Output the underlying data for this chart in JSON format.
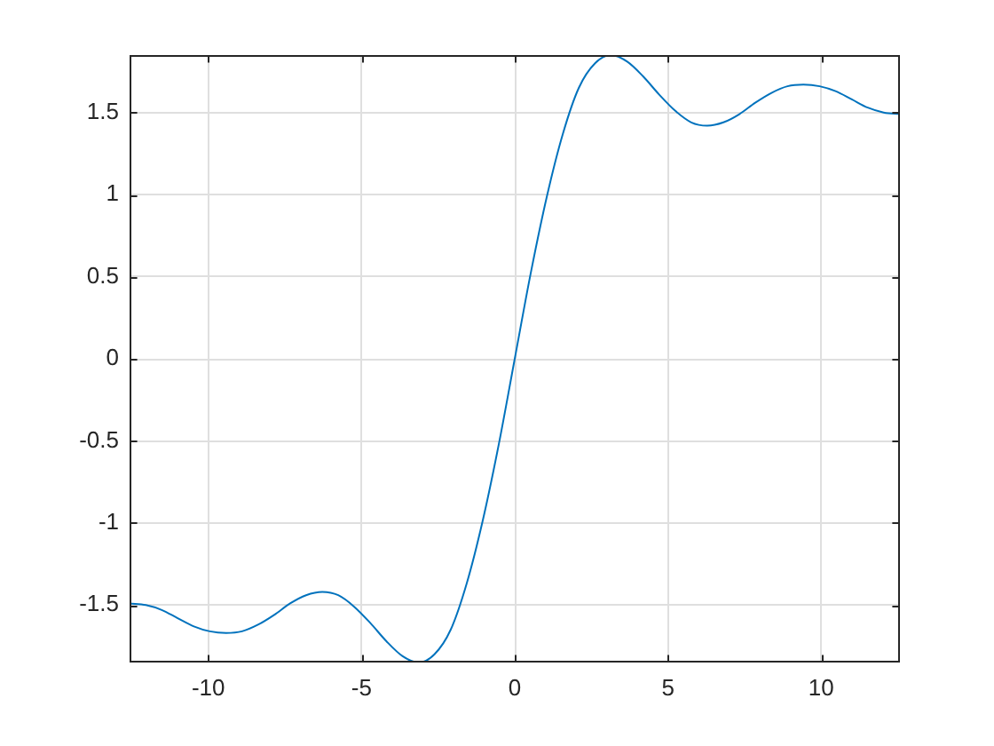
{
  "chart_data": {
    "type": "line",
    "x": [
      -12.57,
      -12.04,
      -11.52,
      -11,
      -10.47,
      -9.95,
      -9.42,
      -8.9,
      -8.38,
      -7.85,
      -7.33,
      -6.81,
      -6.28,
      -5.76,
      -5.24,
      -4.71,
      -4.19,
      -3.67,
      -3.14,
      -2.62,
      -2.09,
      -1.57,
      -1.05,
      -0.52,
      0,
      0.52,
      1.05,
      1.57,
      2.09,
      2.62,
      3.14,
      3.67,
      4.19,
      4.71,
      5.24,
      5.76,
      6.28,
      6.81,
      7.33,
      7.85,
      8.38,
      8.9,
      9.42,
      9.95,
      10.47,
      11,
      11.52,
      12.04,
      12.57
    ],
    "values": [
      -1.49,
      -1.5,
      -1.53,
      -1.58,
      -1.63,
      -1.66,
      -1.67,
      -1.66,
      -1.62,
      -1.56,
      -1.49,
      -1.44,
      -1.42,
      -1.44,
      -1.51,
      -1.61,
      -1.72,
      -1.81,
      -1.85,
      -1.8,
      -1.65,
      -1.37,
      -0.99,
      -0.52,
      0,
      0.52,
      0.99,
      1.37,
      1.65,
      1.8,
      1.85,
      1.81,
      1.72,
      1.61,
      1.51,
      1.44,
      1.42,
      1.44,
      1.49,
      1.56,
      1.62,
      1.66,
      1.67,
      1.66,
      1.63,
      1.58,
      1.53,
      1.5,
      1.49
    ],
    "color": "#0072bd",
    "xlim": [
      -12.57,
      12.57
    ],
    "ylim": [
      -1.85,
      1.85
    ],
    "xticks": [
      -10,
      -5,
      0,
      5,
      10
    ],
    "yticks": [
      -1.5,
      -1,
      -0.5,
      0,
      0.5,
      1,
      1.5
    ],
    "grid": true
  }
}
